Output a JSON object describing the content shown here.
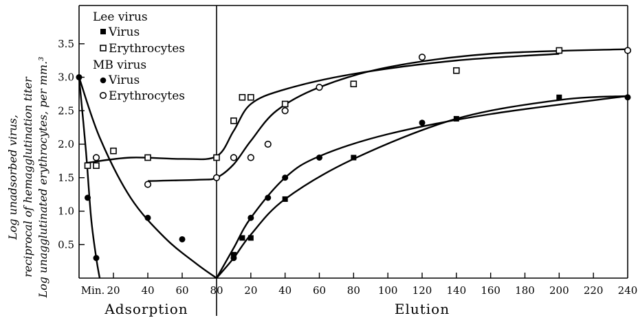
{
  "chart_data": {
    "type": "scatter",
    "title": "",
    "ylabel_lines": [
      "Log unadsorbed virus,",
      "reciprocal of hemagglutination titer",
      "Log unagglutinated erythrocytes, per mm.³"
    ],
    "xlabel_left": "Adsorption",
    "xlabel_right": "Elution",
    "ylim": [
      0,
      4.0
    ],
    "y_ticks": [
      "0.5",
      "1.0",
      "1.5",
      "2.0",
      "2.5",
      "3.0",
      "3.5"
    ],
    "x_ticks_left": [
      "Min.",
      "20",
      "40",
      "60",
      "80"
    ],
    "x_ticks_right": [
      "20",
      "40",
      "60",
      "80",
      "100",
      "120",
      "140",
      "160",
      "180",
      "200",
      "220",
      "240"
    ],
    "x_units": "minutes",
    "legend": {
      "groups": [
        {
          "title": "Lee virus",
          "entries": [
            {
              "marker": "filled-square",
              "label": "Virus"
            },
            {
              "marker": "open-square",
              "label": "Erythrocytes"
            }
          ]
        },
        {
          "title": "MB virus",
          "entries": [
            {
              "marker": "filled-circle",
              "label": "Virus"
            },
            {
              "marker": "open-circle",
              "label": "Erythrocytes"
            }
          ]
        }
      ]
    },
    "series": [
      {
        "name": "Lee virus — Virus",
        "marker": "filled-square",
        "phase": "elution",
        "x": [
          10,
          15,
          20,
          40,
          80,
          140,
          200
        ],
        "y": [
          0.35,
          0.6,
          0.6,
          1.18,
          1.8,
          2.38,
          2.7
        ]
      },
      {
        "name": "Lee virus — Erythrocytes",
        "marker": "open-square",
        "phase": "adsorption",
        "x": [
          5,
          10,
          20,
          40,
          80
        ],
        "y": [
          1.68,
          1.68,
          1.9,
          1.8,
          1.8
        ]
      },
      {
        "name": "Lee virus — Erythrocytes",
        "marker": "open-square",
        "phase": "elution",
        "x": [
          10,
          15,
          20,
          40,
          80,
          140,
          200
        ],
        "y": [
          2.35,
          2.7,
          2.7,
          2.6,
          2.9,
          3.1,
          3.4
        ]
      },
      {
        "name": "MB virus — Virus",
        "marker": "filled-circle",
        "phase": "adsorption",
        "x": [
          0,
          5,
          10,
          40,
          60
        ],
        "y": [
          3.0,
          1.2,
          0.3,
          0.9,
          0.58
        ]
      },
      {
        "name": "MB virus — Virus",
        "marker": "filled-circle",
        "phase": "elution",
        "x": [
          10,
          20,
          30,
          40,
          60,
          120,
          240
        ],
        "y": [
          0.3,
          0.9,
          1.2,
          1.5,
          1.8,
          2.32,
          2.7
        ]
      },
      {
        "name": "MB virus — Erythrocytes",
        "marker": "open-circle",
        "phase": "adsorption",
        "x": [
          10,
          40,
          80
        ],
        "y": [
          1.8,
          1.4,
          1.5
        ]
      },
      {
        "name": "MB virus — Erythrocytes",
        "marker": "open-circle",
        "phase": "elution",
        "x": [
          10,
          20,
          30,
          40,
          60,
          120,
          240
        ],
        "y": [
          1.8,
          1.8,
          2.0,
          2.5,
          2.85,
          3.3,
          3.4
        ]
      }
    ]
  }
}
